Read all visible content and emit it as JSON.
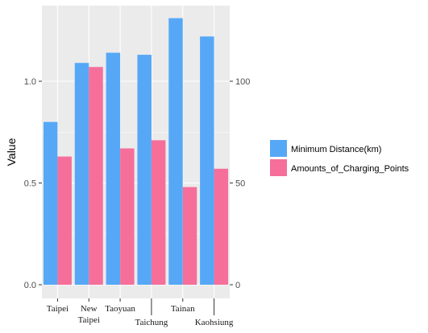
{
  "chart_data": {
    "type": "bar",
    "ylabel": "Value",
    "xlabel": "",
    "categories": [
      "Taipei",
      "New Taipei",
      "Taoyuan",
      "Taichung",
      "Tainan",
      "Kaohsiung"
    ],
    "series": [
      {
        "name": "Minimum Distance(km)",
        "values": [
          0.8,
          1.09,
          1.14,
          1.13,
          1.31,
          1.22
        ],
        "color": "#56a8f7",
        "axis": "left"
      },
      {
        "name": "Amounts_of_Charging_Points",
        "values": [
          63,
          107,
          67,
          71,
          48,
          57
        ],
        "color": "#f56f9a",
        "axis": "right"
      }
    ],
    "ylim_left": [
      0,
      1.38
    ],
    "ylim_right": [
      0,
      138
    ],
    "left_ticks": [
      "0.0",
      "0.5",
      "1.0"
    ],
    "right_ticks": [
      "0",
      "50",
      "100"
    ],
    "left_tick_values": [
      0,
      0.5,
      1.0
    ],
    "right_tick_values": [
      0,
      50,
      100
    ],
    "grid": true,
    "legend_position": "right",
    "panel_background": "#ebebeb",
    "grid_color": "#ffffff"
  }
}
